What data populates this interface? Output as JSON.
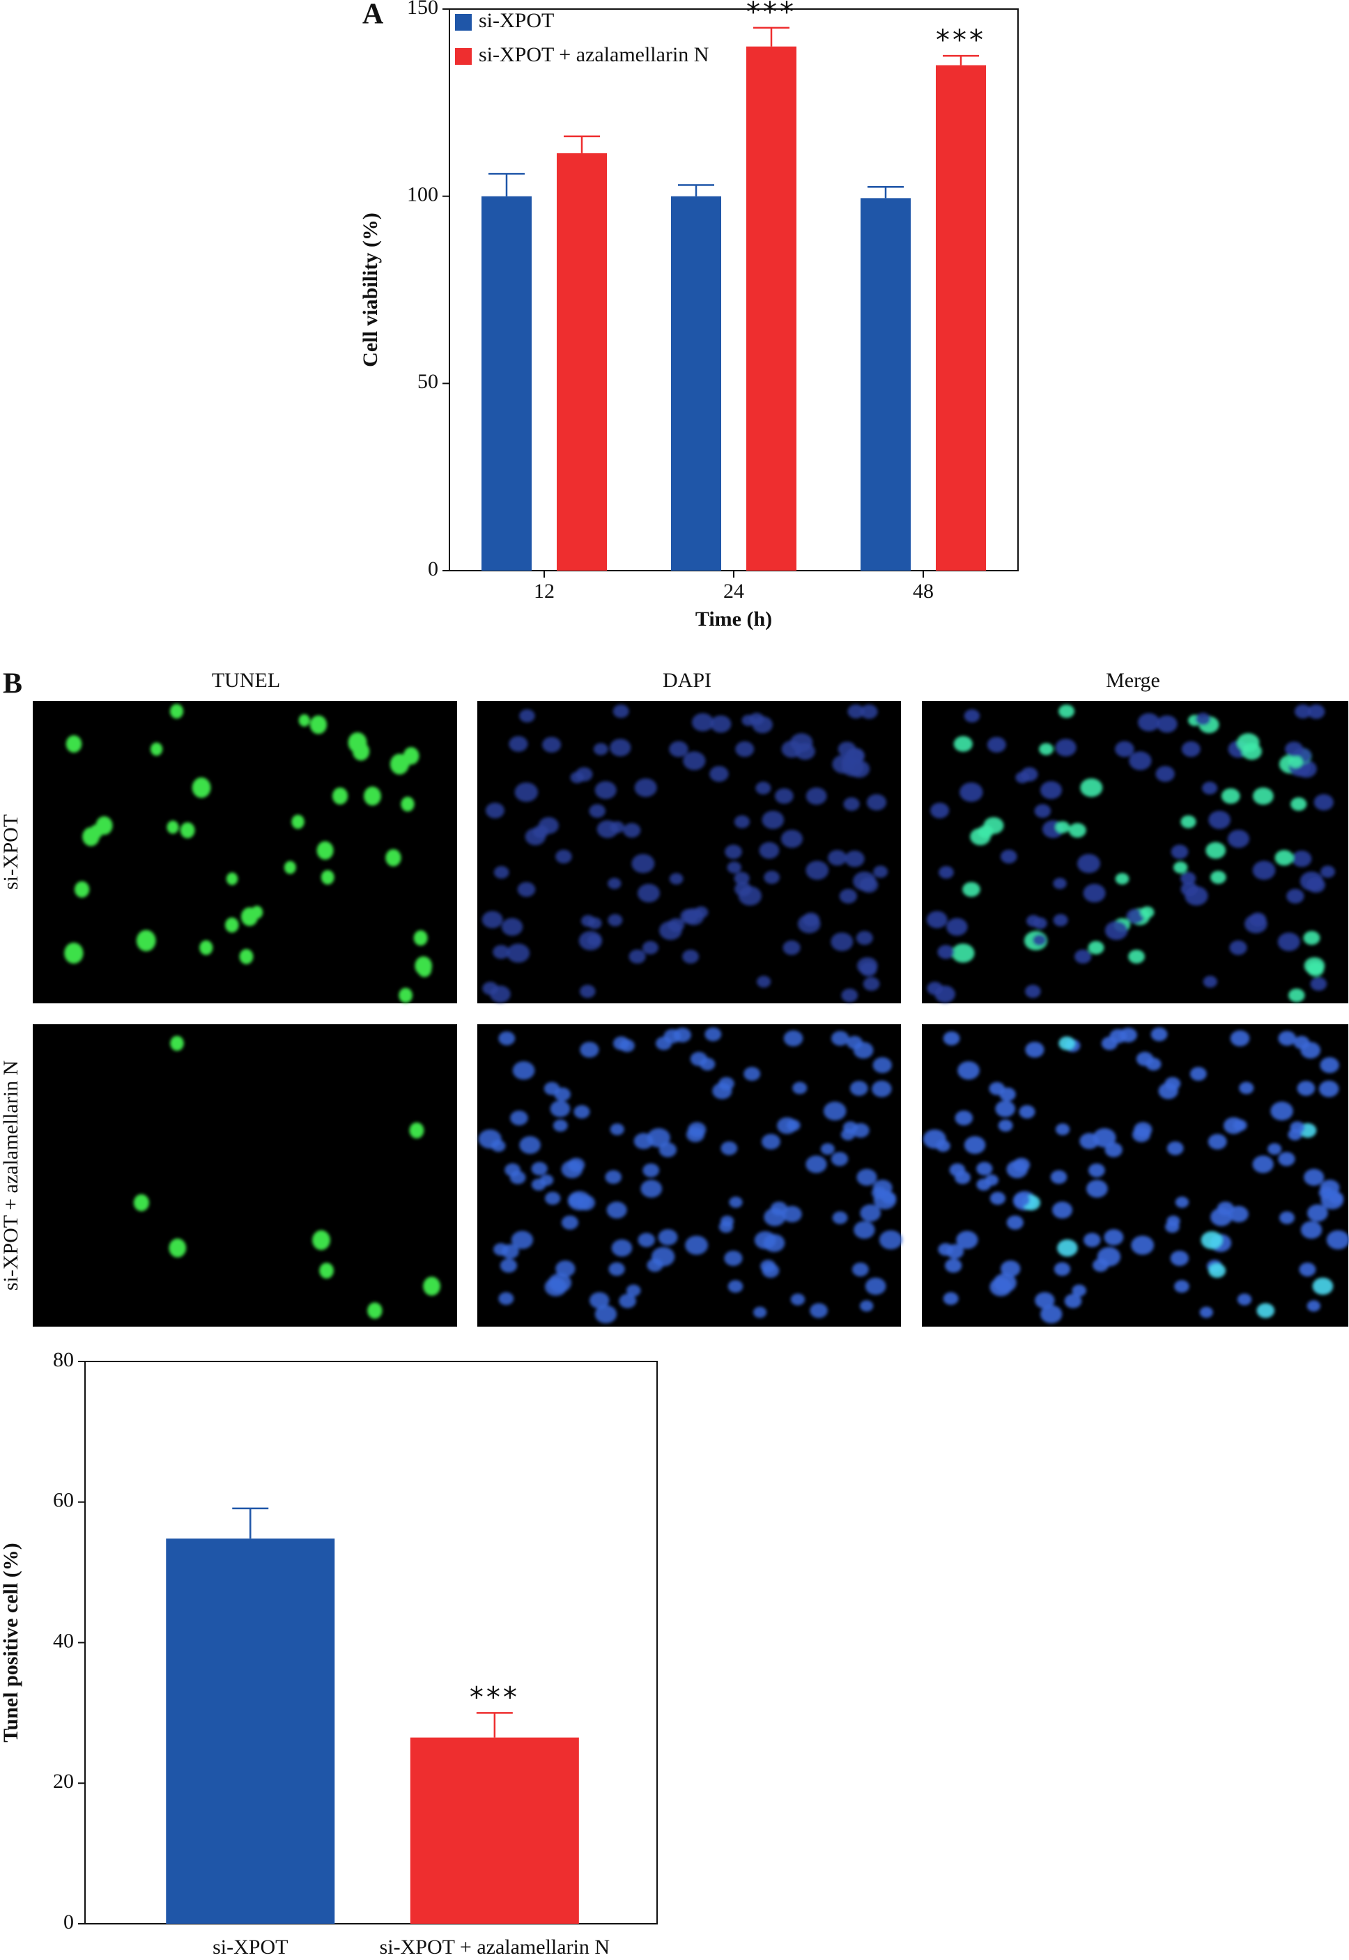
{
  "panel_labels": [
    "A",
    "B"
  ],
  "images": {
    "columns": [
      "TUNEL",
      "DAPI",
      "Merge"
    ],
    "rows": [
      "si-XPOT",
      "si-XPOT + azalamellarin N"
    ]
  },
  "chart_data": [
    {
      "type": "bar",
      "xlabel": "Time (h)",
      "ylabel": "Cell viability (%)",
      "categories": [
        "12",
        "24",
        "48"
      ],
      "series": [
        {
          "name": "si-XPOT",
          "color": "#1f56a8",
          "values": [
            100,
            100,
            99.5
          ],
          "errors": [
            6,
            3,
            3
          ],
          "significance": [
            null,
            null,
            null
          ]
        },
        {
          "name": "si-XPOT + azalamellarin N",
          "color": "#ee2e2f",
          "values": [
            111.5,
            140,
            135
          ],
          "errors": [
            4.5,
            5,
            2.5
          ],
          "significance": [
            null,
            "***",
            "***"
          ]
        }
      ],
      "ylim": [
        0,
        150
      ],
      "yticks": [
        0,
        50,
        100,
        150
      ],
      "legend": "upper-left"
    },
    {
      "type": "bar",
      "ylabel": "Tunel positive cell (%)",
      "categories": [
        "si-XPOT",
        "si-XPOT + azalamellarin N"
      ],
      "values": [
        54.8,
        26.5
      ],
      "errors": [
        4.3,
        3.5
      ],
      "colors": [
        "#1f56a8",
        "#ee2e2f"
      ],
      "significance": [
        null,
        "***"
      ],
      "ylim": [
        0,
        80
      ],
      "yticks": [
        0,
        20,
        40,
        60,
        80
      ]
    }
  ]
}
